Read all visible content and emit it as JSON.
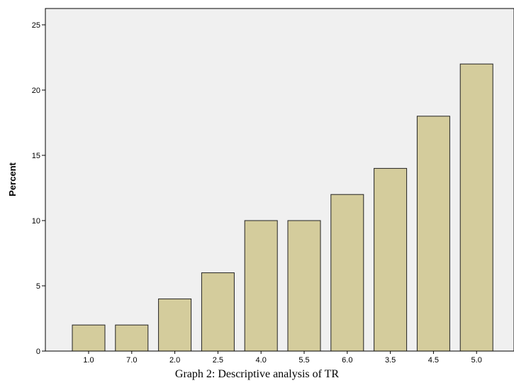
{
  "chart_data": {
    "type": "bar",
    "categories": [
      "1.0",
      "7.0",
      "2.0",
      "2.5",
      "4.0",
      "5.5",
      "6.0",
      "3.5",
      "4.5",
      "5.0"
    ],
    "values": [
      2,
      2,
      4,
      6,
      10,
      10,
      12,
      14,
      18,
      22
    ],
    "ylabel": "Percent",
    "ylim": [
      0,
      25
    ],
    "yticks": [
      0,
      5,
      10,
      15,
      20,
      25
    ],
    "grid": false,
    "legend": "none",
    "colors": {
      "bar_fill": "#d4cc9c",
      "bar_stroke": "#222222",
      "plot_bg": "#f0f0f0"
    }
  },
  "caption": "Graph 2: Descriptive analysis of TR"
}
